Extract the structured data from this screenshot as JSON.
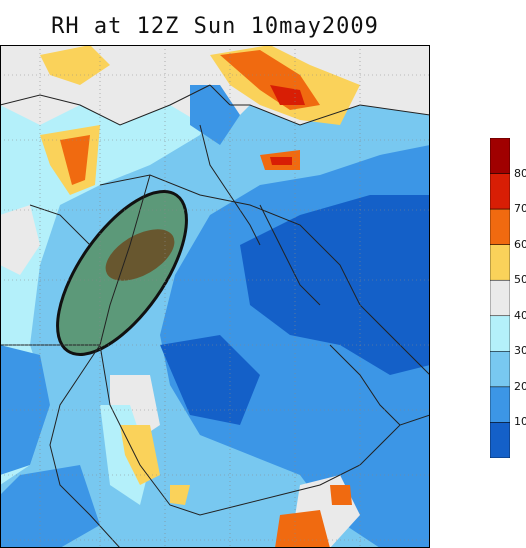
{
  "title": "RH at 12Z Sun 10may2009",
  "colorbar": {
    "labels": [
      "80",
      "70",
      "60",
      "50",
      "40",
      "30",
      "20",
      "10"
    ],
    "colors": [
      "#a00000",
      "#d81e05",
      "#f06a10",
      "#fad25a",
      "#eaeaea",
      "#b4f0fa",
      "#78c8f0",
      "#3c96e6",
      "#1460c8"
    ]
  },
  "colors": {
    "very_dry": "#1460c8",
    "dry": "#3c96e6",
    "moderate": "#78c8f0",
    "moist": "#b4f0fa",
    "neutral": "#eaeaea",
    "yellow": "#fad25a",
    "orange": "#f06a10",
    "red": "#d81e05",
    "dark_red": "#a00000",
    "highlight_fill": "#4a7a2a",
    "highlight_core": "#6e3a10"
  }
}
